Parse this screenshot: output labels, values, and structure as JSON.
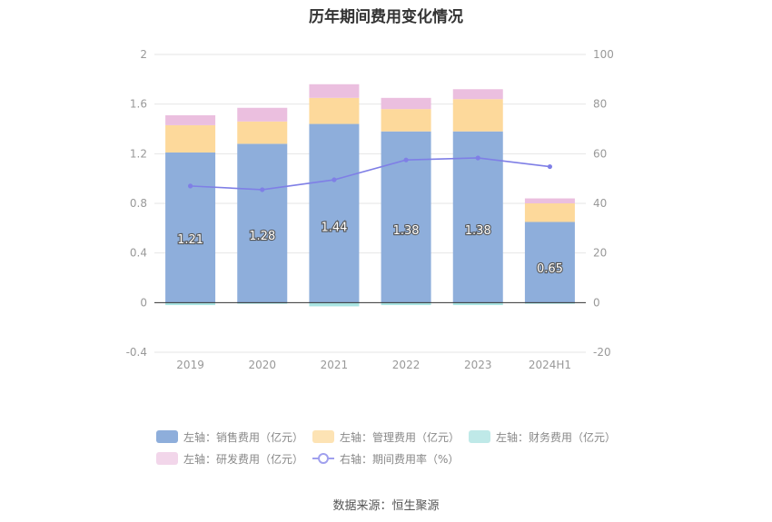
{
  "title": "历年期间费用变化情况",
  "source": "数据来源：恒生聚源",
  "chart_data": {
    "type": "bar",
    "stacked": true,
    "categories": [
      "2019",
      "2020",
      "2021",
      "2022",
      "2023",
      "2024H1"
    ],
    "y_left": {
      "ylim": [
        -0.4,
        2
      ],
      "ticks": [
        "-0.4",
        "0",
        "0.4",
        "0.8",
        "1.2",
        "1.6",
        "2"
      ]
    },
    "y_right": {
      "ylim": [
        -20,
        100
      ],
      "ticks": [
        "-20",
        "0",
        "20",
        "40",
        "60",
        "80",
        "100"
      ]
    },
    "grid": true,
    "legend_position": "bottom",
    "series": [
      {
        "name": "左轴：销售费用（亿元）",
        "axis": "left",
        "color": "#8eaedb",
        "values": [
          1.21,
          1.28,
          1.44,
          1.38,
          1.38,
          0.65
        ],
        "labels": [
          "1.21",
          "1.28",
          "1.44",
          "1.38",
          "1.38",
          "0.65"
        ]
      },
      {
        "name": "左轴：管理费用（亿元）",
        "axis": "left",
        "color": "#fdd99b",
        "values": [
          0.22,
          0.18,
          0.21,
          0.18,
          0.26,
          0.15
        ]
      },
      {
        "name": "左轴：财务费用（亿元）",
        "axis": "left",
        "color": "#a8e4e2",
        "values": [
          -0.02,
          -0.01,
          -0.03,
          -0.02,
          -0.02,
          -0.01
        ]
      },
      {
        "name": "左轴：研发费用（亿元）",
        "axis": "left",
        "color": "#ebbfdf",
        "values": [
          0.08,
          0.11,
          0.11,
          0.09,
          0.08,
          0.04
        ]
      },
      {
        "name": "右轴：期间费用率（%）",
        "axis": "right",
        "type": "line",
        "color": "#7f7fe6",
        "values": [
          47,
          45.5,
          49.5,
          57.5,
          58.3,
          54.8
        ]
      }
    ]
  }
}
